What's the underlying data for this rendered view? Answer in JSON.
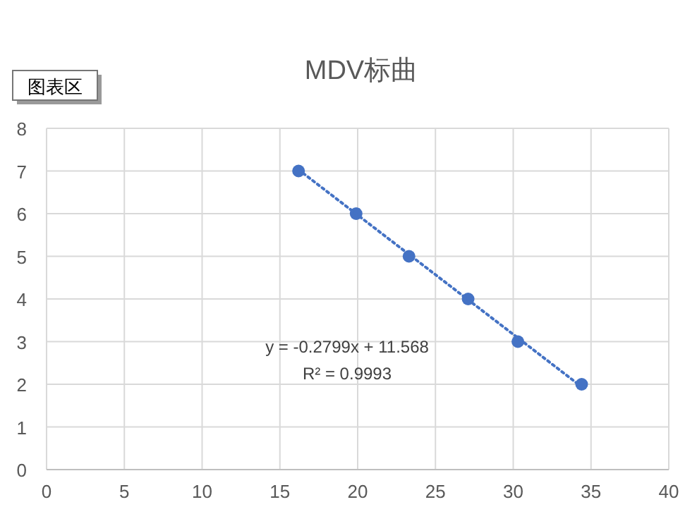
{
  "chart_data": {
    "type": "scatter",
    "title": "MDV标曲",
    "series": [
      {
        "color": "#4472c4",
        "marker": "circle",
        "x": [
          16.2,
          19.9,
          23.3,
          27.1,
          30.3,
          34.4
        ],
        "values": [
          7,
          6,
          5,
          4,
          3,
          2
        ]
      },
      {
        "type": "line",
        "color": "#4472c4",
        "line_style": "dotted",
        "marker": "none",
        "x": [
          16.2,
          34.4
        ],
        "values": [
          7.03,
          1.94
        ]
      }
    ],
    "xlim": [
      0,
      40
    ],
    "xticks": [
      0,
      5,
      10,
      15,
      20,
      25,
      30,
      35,
      40
    ],
    "ylim": [
      0,
      8
    ],
    "yticks": [
      0,
      1,
      2,
      3,
      4,
      5,
      6,
      7,
      8
    ],
    "grid": true,
    "annotations": [
      "图表区",
      "y = -0.2799x + 11.568",
      "R² = 0.9993"
    ]
  }
}
